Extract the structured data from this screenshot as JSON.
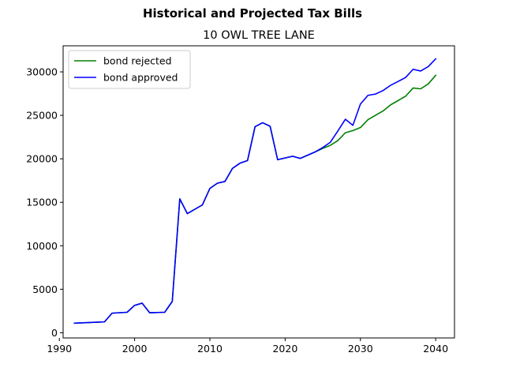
{
  "figure": {
    "suptitle": "Historical and Projected Tax Bills",
    "title": "10 OWL TREE LANE"
  },
  "chart_data": {
    "type": "line",
    "title": "10 OWL TREE LANE",
    "suptitle": "Historical and Projected Tax Bills",
    "xlabel": "",
    "ylabel": "",
    "xlim": [
      1990.5,
      2042.5
    ],
    "ylim": [
      -600,
      33000
    ],
    "xticks": [
      1990,
      2000,
      2010,
      2020,
      2030,
      2040
    ],
    "xtick_labels": [
      "1990",
      "2000",
      "2010",
      "2020",
      "2030",
      "2040"
    ],
    "yticks": [
      0,
      5000,
      10000,
      15000,
      20000,
      25000,
      30000
    ],
    "ytick_labels": [
      "0",
      "5000",
      "10000",
      "15000",
      "20000",
      "25000",
      "30000"
    ],
    "grid": false,
    "legend_position": "upper-left",
    "series": [
      {
        "name": "bond rejected",
        "color": "#008000",
        "x": [
          1992,
          1996,
          1997,
          1999,
          2000,
          2001,
          2002,
          2004,
          2005,
          2006,
          2007,
          2009,
          2010,
          2011,
          2012,
          2013,
          2014,
          2015,
          2016,
          2017,
          2018,
          2019,
          2021,
          2022,
          2024,
          2025,
          2026,
          2027,
          2028,
          2029,
          2030,
          2031,
          2032,
          2033,
          2034,
          2035,
          2036,
          2037,
          2038,
          2039,
          2040
        ],
        "values": [
          1100,
          1250,
          2250,
          2350,
          3150,
          3400,
          2300,
          2350,
          3600,
          15400,
          13700,
          14700,
          16600,
          17200,
          17400,
          18900,
          19500,
          19800,
          23700,
          24150,
          23750,
          19900,
          20300,
          20050,
          20800,
          21200,
          21550,
          22100,
          23000,
          23250,
          23600,
          24500,
          25000,
          25500,
          26200,
          26700,
          27200,
          28150,
          28050,
          28600,
          29600
        ]
      },
      {
        "name": "bond approved",
        "color": "#0000ff",
        "x": [
          1992,
          1996,
          1997,
          1999,
          2000,
          2001,
          2002,
          2004,
          2005,
          2006,
          2007,
          2009,
          2010,
          2011,
          2012,
          2013,
          2014,
          2015,
          2016,
          2017,
          2018,
          2019,
          2021,
          2022,
          2024,
          2025,
          2026,
          2027,
          2028,
          2029,
          2030,
          2031,
          2032,
          2033,
          2034,
          2035,
          2036,
          2037,
          2038,
          2039,
          2040
        ],
        "values": [
          1100,
          1250,
          2250,
          2350,
          3150,
          3400,
          2300,
          2350,
          3600,
          15400,
          13700,
          14700,
          16600,
          17200,
          17400,
          18900,
          19500,
          19800,
          23700,
          24150,
          23750,
          19900,
          20300,
          20050,
          20800,
          21300,
          21900,
          23200,
          24550,
          23850,
          26300,
          27300,
          27450,
          27850,
          28450,
          28900,
          29350,
          30300,
          30100,
          30600,
          31500
        ]
      }
    ]
  }
}
